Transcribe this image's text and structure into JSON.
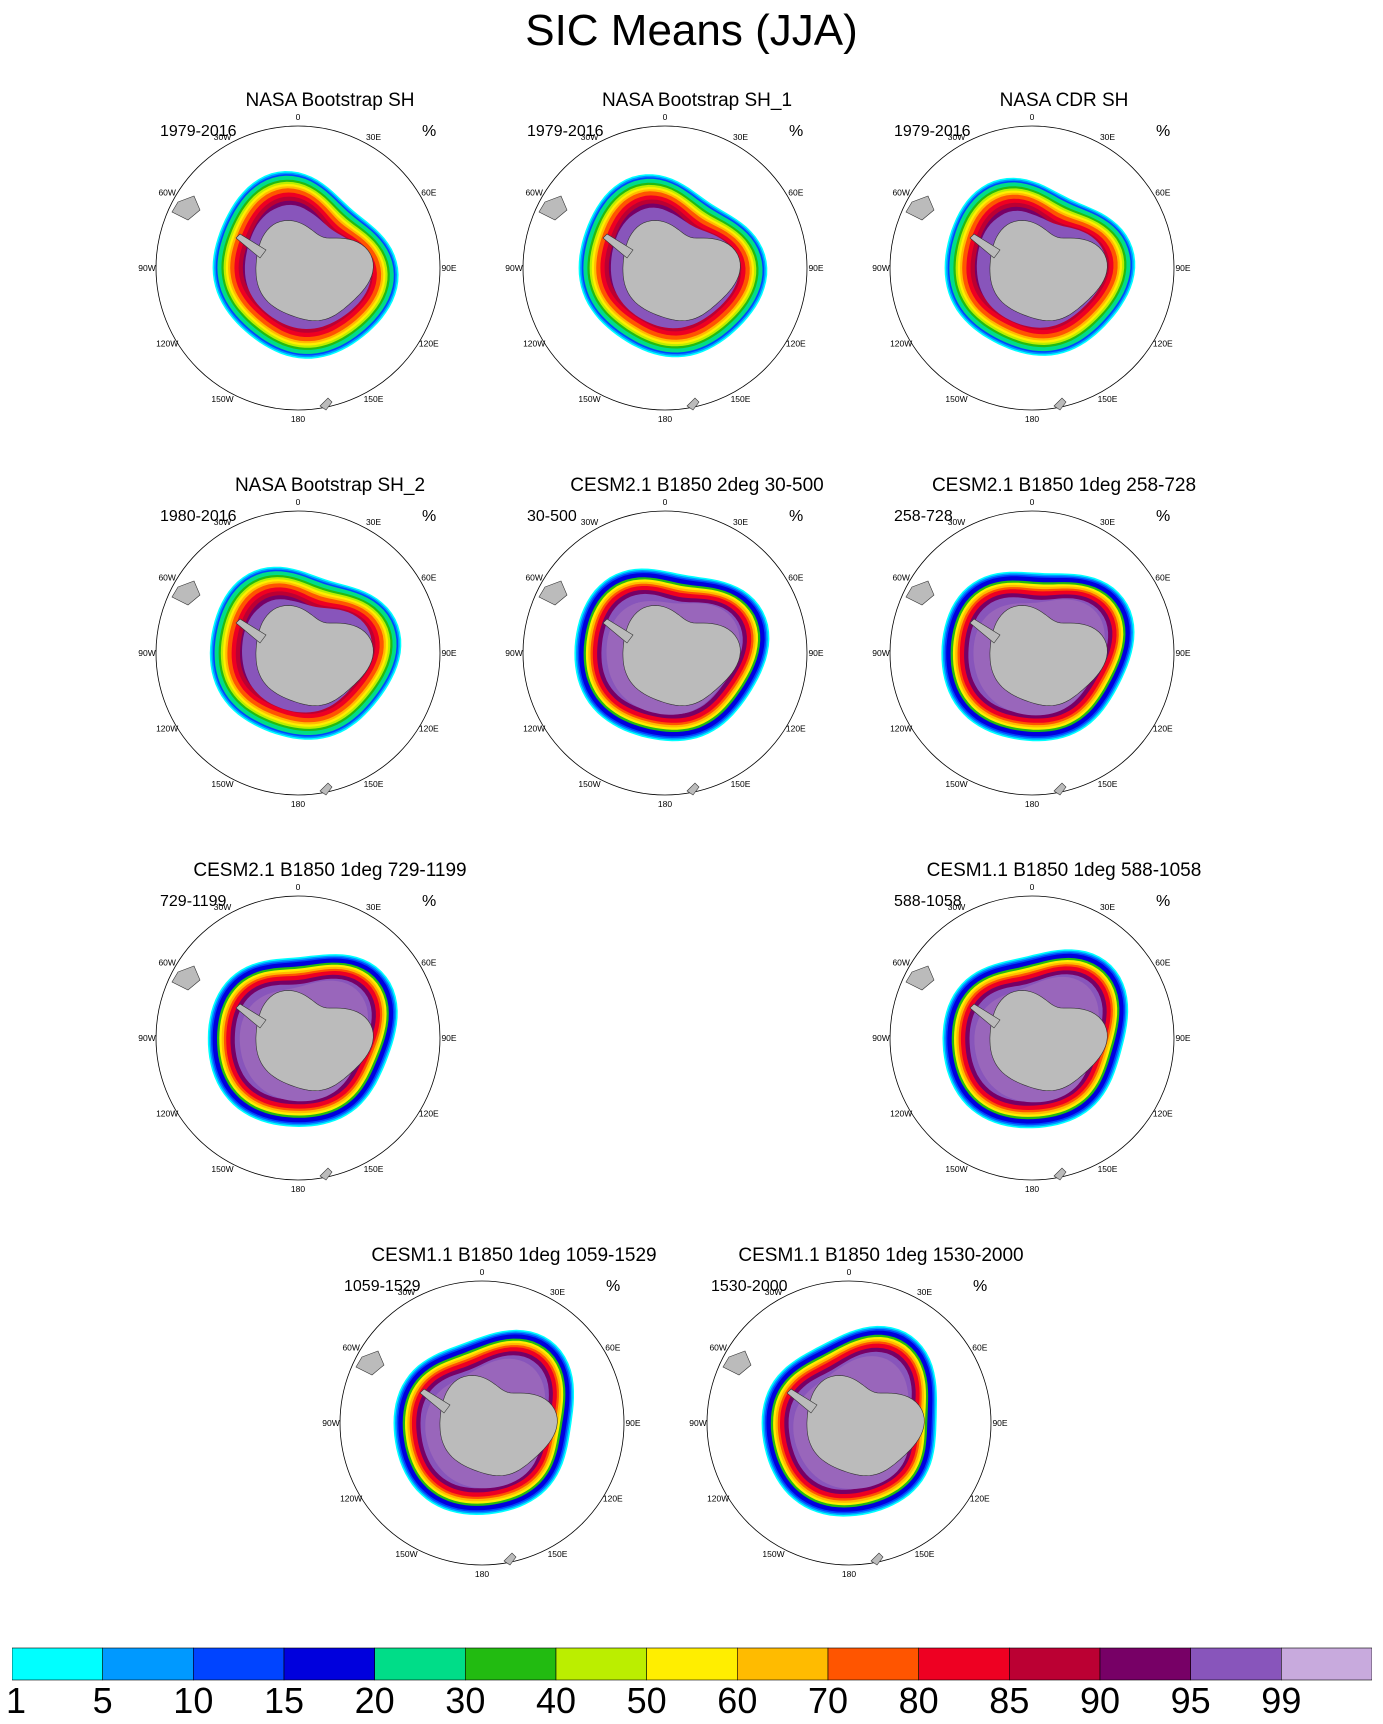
{
  "title": "SIC Means (JJA)",
  "unit": "%",
  "meridian_labels": [
    "0",
    "30E",
    "60E",
    "90E",
    "120E",
    "150E",
    "180",
    "150W",
    "120W",
    "90W",
    "60W",
    "30W"
  ],
  "panels": [
    {
      "id": "p1",
      "title": "NASA Bootstrap SH",
      "period": "1979-2016",
      "style": "obs"
    },
    {
      "id": "p2",
      "title": "NASA Bootstrap SH_1",
      "period": "1979-2016",
      "style": "obs"
    },
    {
      "id": "p3",
      "title": "NASA CDR SH",
      "period": "1979-2016",
      "style": "obs"
    },
    {
      "id": "p4",
      "title": "NASA Bootstrap SH_2",
      "period": "1980-2016",
      "style": "obs"
    },
    {
      "id": "p5",
      "title": "CESM2.1 B1850 2deg 30-500",
      "period": "30-500",
      "style": "model"
    },
    {
      "id": "p6",
      "title": "CESM2.1 B1850 1deg 258-728",
      "period": "258-728",
      "style": "model"
    },
    {
      "id": "p7",
      "title": "CESM2.1 B1850 1deg 729-1199",
      "period": "729-1199",
      "style": "model"
    },
    {
      "id": "p8",
      "title": "CESM1.1 B1850 1deg 588-1058",
      "period": "588-1058",
      "style": "model"
    },
    {
      "id": "p9",
      "title": "CESM1.1 B1850 1deg 1059-1529",
      "period": "1059-1529",
      "style": "model"
    },
    {
      "id": "p10",
      "title": "CESM1.1 B1850 1deg 1530-2000",
      "period": "1530-2000",
      "style": "model"
    }
  ],
  "colorbar": {
    "labels": [
      "1",
      "5",
      "10",
      "15",
      "20",
      "30",
      "40",
      "50",
      "60",
      "70",
      "80",
      "85",
      "90",
      "95",
      "99"
    ],
    "colors": [
      "#00ffff",
      "#0099ff",
      "#0044ff",
      "#0000dd",
      "#00dd88",
      "#22bb11",
      "#bbee00",
      "#ffee00",
      "#ffbb00",
      "#ff5500",
      "#ee0022",
      "#bb0033",
      "#770066",
      "#8855bb",
      "#c8aadd"
    ]
  }
}
